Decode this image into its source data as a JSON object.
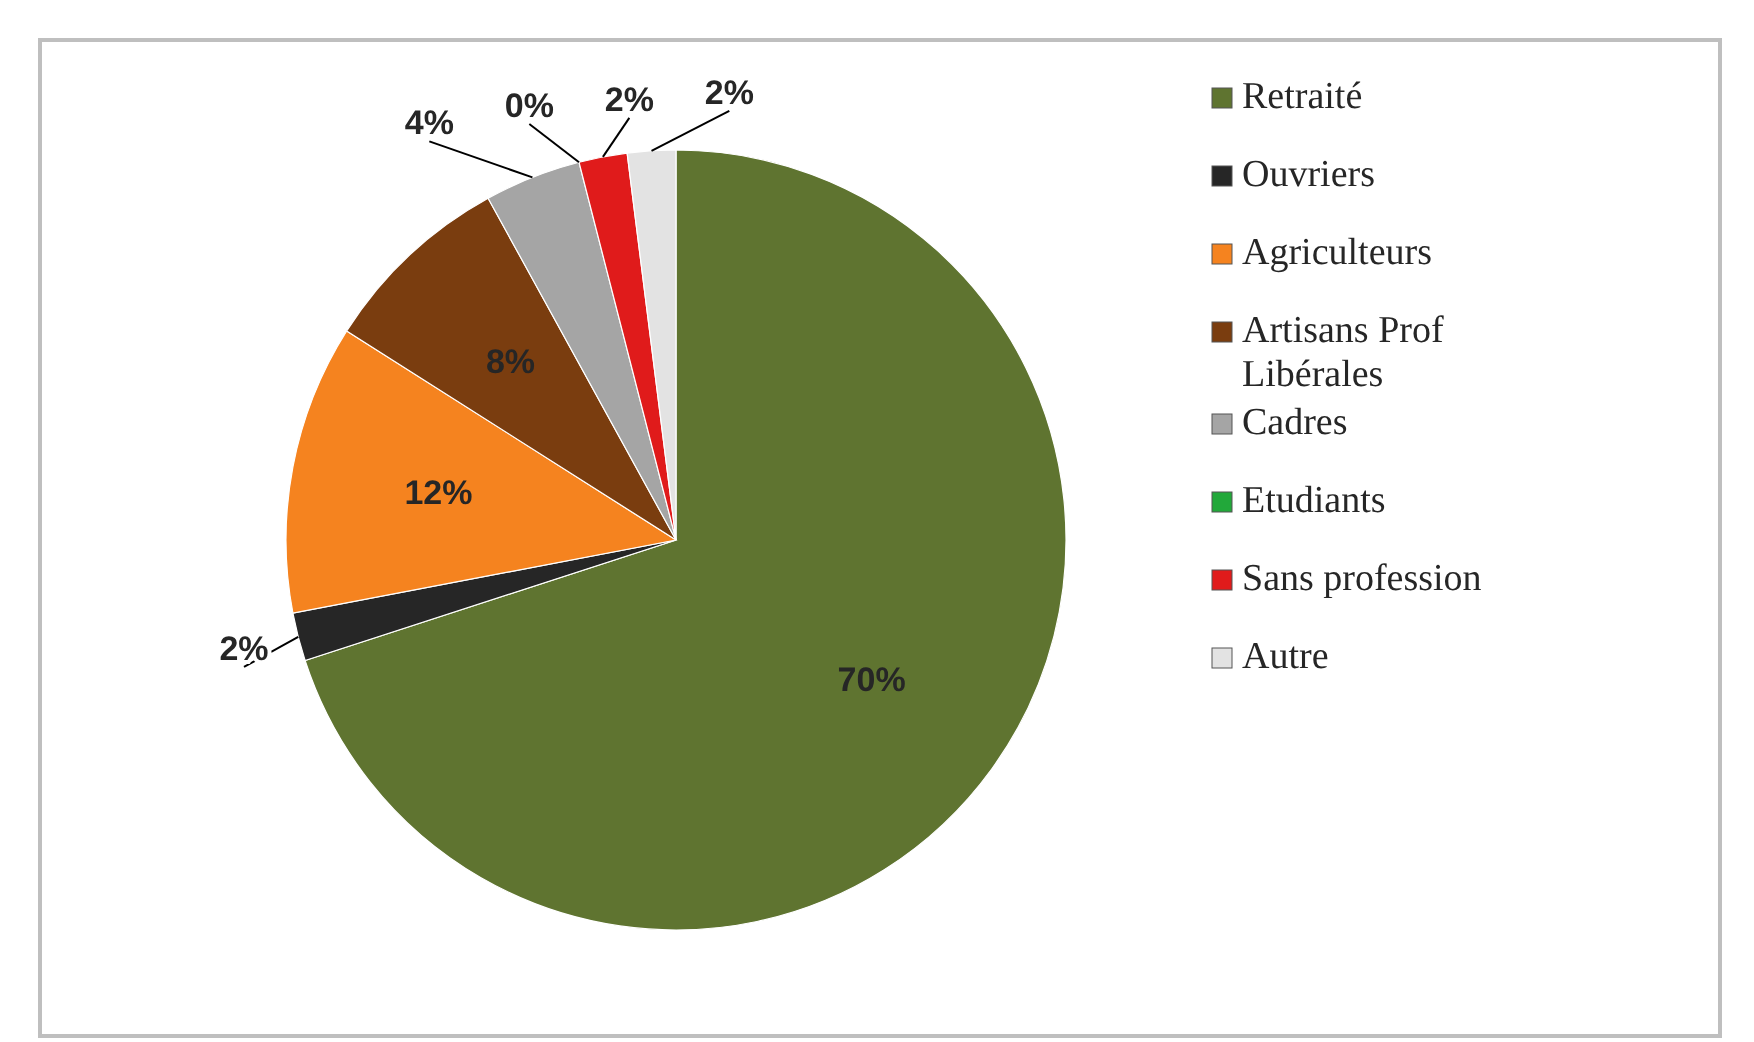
{
  "chart_data": {
    "type": "pie",
    "categories": [
      "Retraité",
      "Ouvriers",
      "Agriculteurs",
      "Artisans Prof Libérales",
      "Cadres",
      "Etudiants",
      "Sans profession",
      "Autre"
    ],
    "values": [
      70,
      2,
      12,
      8,
      4,
      0,
      2,
      2
    ],
    "colors": [
      "#5f7430",
      "#262626",
      "#f5831f",
      "#7a3d0f",
      "#a5a5a5",
      "#22a83a",
      "#e01b1b",
      "#e3e3e3"
    ],
    "value_labels": [
      "70%",
      "2%",
      "12%",
      "8%",
      "4%",
      "0%",
      "2%",
      "2%"
    ],
    "legend": "right"
  }
}
